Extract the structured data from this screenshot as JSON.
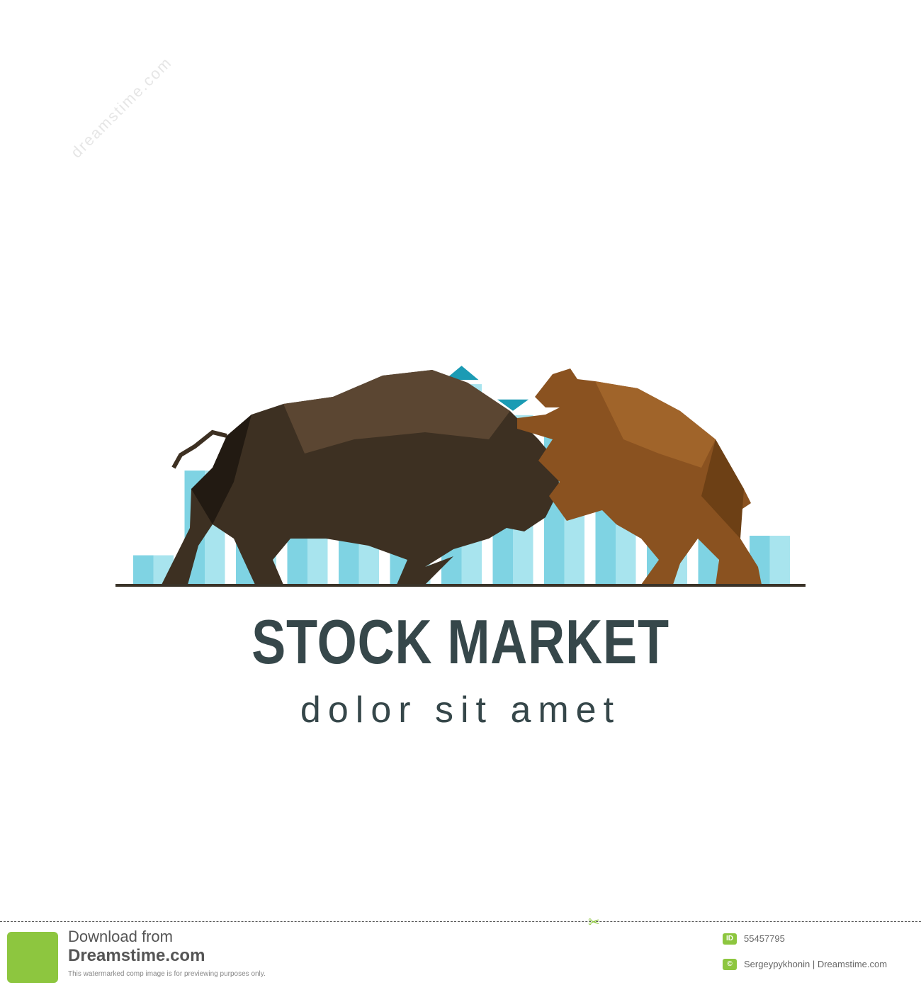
{
  "logo": {
    "title": "STOCK MARKET",
    "tagline": "dolor sit amet",
    "colors": {
      "bar_light": "#a8e4ee",
      "bar_dark": "#7fd3e3",
      "arrow": "#1b9bb4",
      "bull": "#4a3a2a",
      "bear": "#7a4a1a",
      "ground": "#3a3328",
      "text": "#36474a"
    },
    "bar_levels": [
      0.18,
      0.7,
      0.9,
      1.0,
      0.88,
      1.1,
      1.23,
      1.04,
      0.95,
      1.02,
      0.87,
      0.64,
      0.3
    ],
    "arrows": [
      "down",
      "up",
      "down"
    ]
  },
  "watermark": {
    "text": "dreamstime.com"
  },
  "footer": {
    "download_line1": "Download from",
    "download_line2": "Dreamstime.com",
    "note": "This watermarked comp image is for previewing purposes only.",
    "id_badge": "ID",
    "image_id": "55457795",
    "credit": "Sergeypykhonin | Dreamstime.com"
  }
}
